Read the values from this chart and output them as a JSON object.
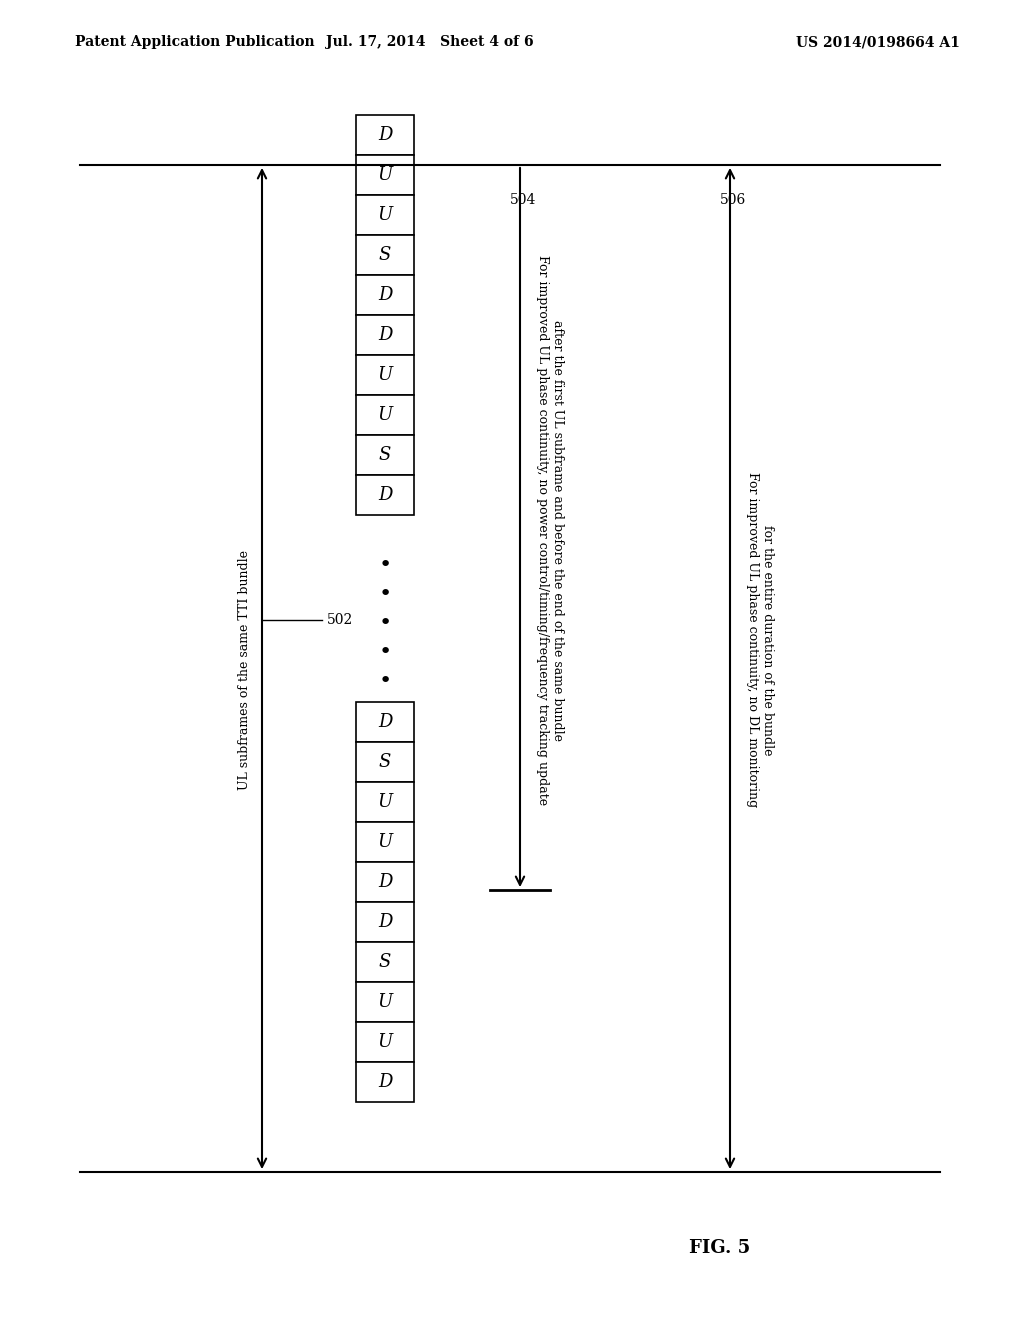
{
  "title_left": "Patent Application Publication",
  "title_mid": "Jul. 17, 2014   Sheet 4 of 6",
  "title_right": "US 2014/0198664 A1",
  "fig_label": "FIG. 5",
  "top_sequence": [
    "D",
    "U",
    "U",
    "S",
    "D",
    "D",
    "U",
    "U",
    "S",
    "D"
  ],
  "bottom_sequence": [
    "D",
    "S",
    "U",
    "U",
    "D",
    "D",
    "S",
    "U",
    "U",
    "D"
  ],
  "label_502": "502",
  "label_502_text": "UL subframes of the same TTI bundle",
  "label_504": "504",
  "label_504_text_line1": "For improved UL phase continuity, no power control/timing/frequency tracking update",
  "label_504_text_line2": "after the first UL subframe and before the end of the same bundle",
  "label_506": "506",
  "label_506_text_line1": "For improved UL phase continuity, no DL monitoring",
  "label_506_text_line2": "for the entire duration of the bundle",
  "bg_color": "#ffffff",
  "box_color": "#000000",
  "text_color": "#000000"
}
